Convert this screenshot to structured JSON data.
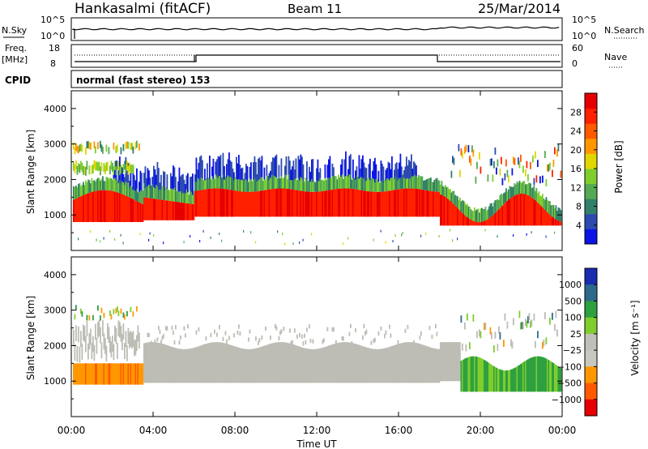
{
  "header": {
    "station": "Hankasalmi (fitACF)",
    "beam": "Beam 11",
    "date": "25/Mar/2014"
  },
  "top_panels": {
    "nsky_label": "N.Sky",
    "nsky_top": "10^5",
    "nsky_bottom": "10^0",
    "nsearch_label": "N.Search",
    "freq_label_1": "Freq.",
    "freq_label_2": "[MHz]",
    "freq_top": "18",
    "freq_bottom": "8",
    "nave_label": "Nave",
    "nave_top": "60",
    "nave_bottom": "0",
    "cpid_label": "CPID",
    "cpid_text": "normal (fast stereo) 153"
  },
  "colors": {
    "power_scale": [
      "#0a14e6",
      "#2d4ab0",
      "#33806a",
      "#55aa55",
      "#7fce2e",
      "#e0d600",
      "#ff9800",
      "#ff5a00",
      "#ff2000",
      "#e60000"
    ],
    "velocity_scale": [
      "#e60000",
      "#ff5a00",
      "#ff9800",
      "#c8c8c0",
      "#c0c0b8",
      "#7fce2e",
      "#2ea040",
      "#2d6a8a",
      "#1a2cb0"
    ],
    "ground_scatter": "#bdbdb5"
  },
  "chart_data": [
    {
      "type": "heatmap",
      "name": "power-panel",
      "ylabel": "Slant Range [km]",
      "ylim": [
        0,
        4500
      ],
      "yticks": [
        1000,
        2000,
        3000,
        4000
      ],
      "xlim": [
        0,
        24
      ],
      "colorbar_label": "Power [dB]",
      "colorbar_ticks": [
        "4",
        "8",
        "12",
        "16",
        "20",
        "24",
        "28"
      ],
      "colorbar_range": [
        0,
        32
      ]
    },
    {
      "type": "heatmap",
      "name": "velocity-panel",
      "ylabel": "Slant Range [km]",
      "ylim": [
        0,
        4500
      ],
      "yticks": [
        1000,
        2000,
        3000,
        4000
      ],
      "xlim": [
        0,
        24
      ],
      "colorbar_label": "Velocity [m s⁻¹]",
      "colorbar_ticks": [
        "1000",
        "500",
        "100",
        "25",
        "−25",
        "−100",
        "−500",
        "−1000"
      ]
    },
    {
      "type": "axis",
      "xlabel": "Time UT",
      "xticks": [
        "00:00",
        "04:00",
        "08:00",
        "12:00",
        "16:00",
        "20:00",
        "00:00"
      ],
      "xtick_hours": [
        0,
        4,
        8,
        12,
        16,
        20,
        24
      ]
    }
  ]
}
